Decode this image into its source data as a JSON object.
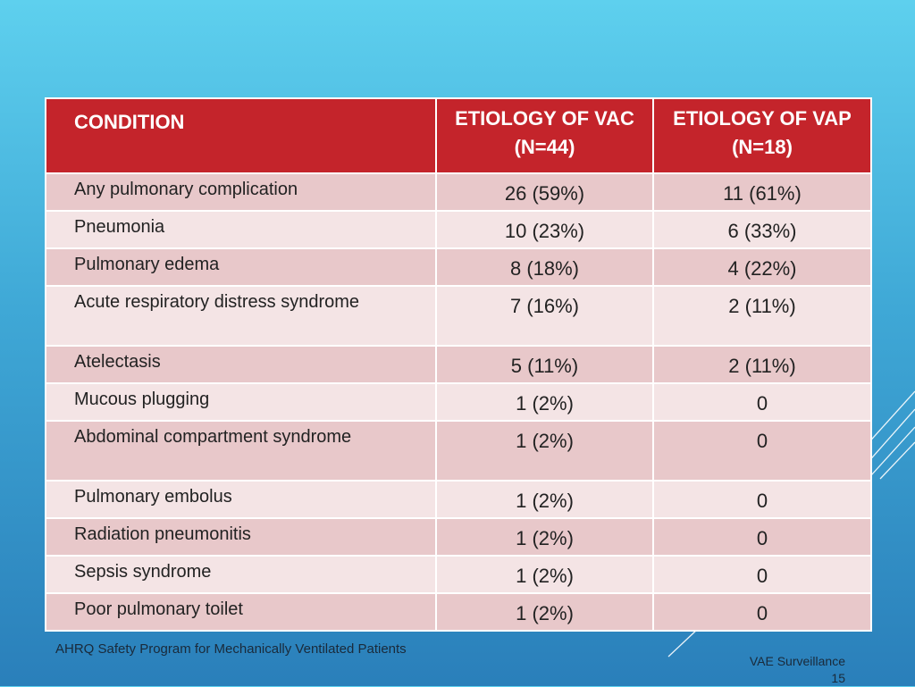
{
  "table": {
    "headers": [
      "CONDITION",
      "ETIOLOGY OF VAC (N=44)",
      "ETIOLOGY OF VAP (N=18)"
    ],
    "rows": [
      {
        "condition": "Any pulmonary complication",
        "vac": "26 (59%)",
        "vap": "11 (61%)"
      },
      {
        "condition": "Pneumonia",
        "vac": "10 (23%)",
        "vap": "6 (33%)"
      },
      {
        "condition": "Pulmonary edema",
        "vac": "8 (18%)",
        "vap": "4 (22%)"
      },
      {
        "condition": "Acute respiratory distress syndrome",
        "vac": "7 (16%)",
        "vap": "2 (11%)"
      },
      {
        "condition": "Atelectasis",
        "vac": "5 (11%)",
        "vap": "2 (11%)"
      },
      {
        "condition": "Mucous plugging",
        "vac": "1 (2%)",
        "vap": "0"
      },
      {
        "condition": "Abdominal compartment syndrome",
        "vac": "1 (2%)",
        "vap": "0"
      },
      {
        "condition": "Pulmonary embolus",
        "vac": "1 (2%)",
        "vap": "0"
      },
      {
        "condition": "Radiation pneumonitis",
        "vac": "1 (2%)",
        "vap": "0"
      },
      {
        "condition": "Sepsis syndrome",
        "vac": "1 (2%)",
        "vap": "0"
      },
      {
        "condition": "Poor pulmonary toilet",
        "vac": "1 (2%)",
        "vap": "0"
      }
    ]
  },
  "footer": {
    "source": "AHRQ Safety Program for Mechanically Ventilated Patients",
    "section": "VAE Surveillance",
    "page_number": "15"
  },
  "colors": {
    "header_bg": "#c4242b",
    "row_odd": "#e8c8ca",
    "row_even": "#f4e4e5"
  }
}
